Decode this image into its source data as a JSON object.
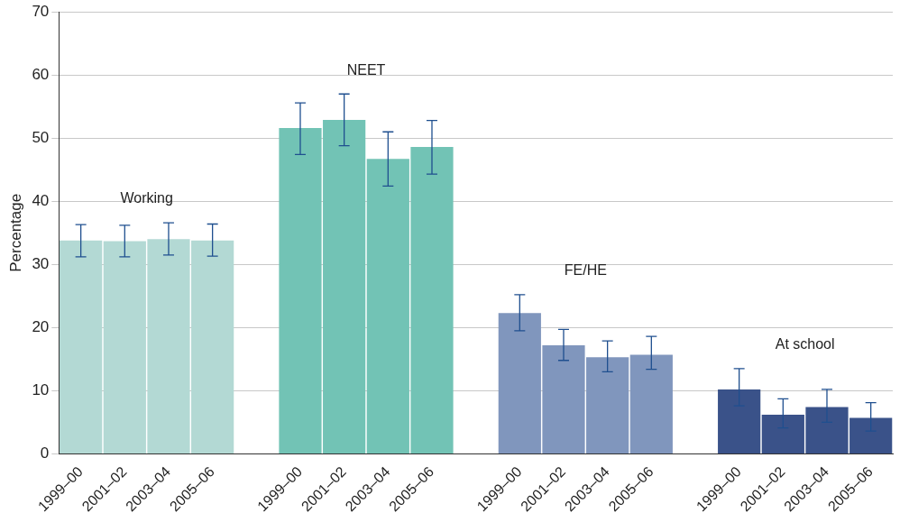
{
  "chart_data": {
    "type": "bar",
    "ylabel": "Percentage",
    "categories": [
      "1999–00",
      "2001–02",
      "2003–04",
      "2005–06",
      null,
      "1999–00",
      "2001–02",
      "2003–04",
      "2005–06",
      null,
      "1999–00",
      "2001–02",
      "2003–04",
      "2005–06",
      null,
      "1999–00",
      "2001–02",
      "2003–04",
      "2005–06"
    ],
    "values": [
      33.8,
      33.7,
      34.0,
      33.8,
      null,
      51.6,
      52.9,
      46.7,
      48.6,
      null,
      22.3,
      17.2,
      15.3,
      15.7,
      null,
      10.2,
      6.2,
      7.4,
      5.7
    ],
    "errors": [
      [
        31.2,
        36.3
      ],
      [
        31.2,
        36.2
      ],
      [
        31.5,
        36.6
      ],
      [
        31.3,
        36.4
      ],
      null,
      [
        47.4,
        55.6
      ],
      [
        48.8,
        57.0
      ],
      [
        42.4,
        51.0
      ],
      [
        44.3,
        52.8
      ],
      null,
      [
        19.5,
        25.2
      ],
      [
        14.8,
        19.7
      ],
      [
        13.0,
        17.9
      ],
      [
        13.4,
        18.6
      ],
      null,
      [
        7.6,
        13.5
      ],
      [
        4.1,
        8.7
      ],
      [
        5.0,
        10.2
      ],
      [
        3.6,
        8.1
      ]
    ],
    "colors": [
      "#b3d9d4",
      "#b3d9d4",
      "#b3d9d4",
      "#b3d9d4",
      "#ffffff",
      "#72c3b5",
      "#72c3b5",
      "#72c3b5",
      "#72c3b5",
      "#ffffff",
      "#8096bd",
      "#8096bd",
      "#8096bd",
      "#8096bd",
      "#ffffff",
      "#3a5289",
      "#3a5289",
      "#3a5289",
      "#3a5289"
    ],
    "annotations": [
      "Working",
      "NEET",
      "FE/HE",
      "At school"
    ],
    "ylim": [
      0,
      70
    ],
    "yticks": [
      0,
      10,
      20,
      30,
      40,
      50,
      60,
      70
    ],
    "grid": "y",
    "legend": false
  }
}
